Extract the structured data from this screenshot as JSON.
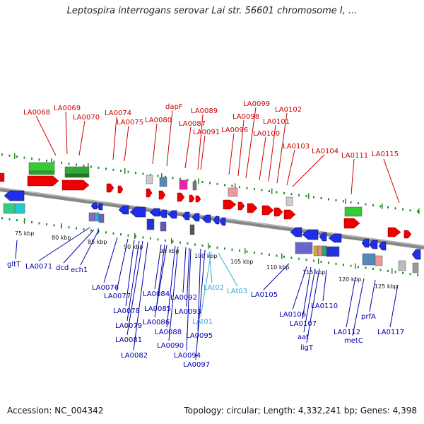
{
  "title": "Leptospira interrogans serovar Lai str. 56601 chromosome I, ...",
  "footer": {
    "accession": "Accession: NC_004342",
    "summary": "Topology: circular; Length: 4,332,241 bp; Genes: 4,398"
  },
  "colors": {
    "forward_label": "#cc0000",
    "reverse_label": "#0000aa",
    "rna_label": "#33aadd",
    "backbone": "#888888",
    "ruler_dots": "#228822"
  },
  "ruler_ticks": [
    "75 kbp",
    "80 kbp",
    "85 kbp",
    "90 kbp",
    "95 kbp",
    "100 kbp",
    "105 kbp",
    "110 kbp",
    "115 kbp",
    "120 kbp",
    "125 kbp"
  ],
  "forward_genes": [
    "LA0068",
    "LA0069",
    "LA0070",
    "LA0074",
    "LA0075",
    "LA0080",
    "dapF",
    "LA0087",
    "LA0089",
    "LA0091",
    "LA0096",
    "LA0098",
    "LA0099",
    "LA0100",
    "LA0101",
    "LA0102",
    "LA0103",
    "LA0104",
    "LA0111",
    "LA0115"
  ],
  "reverse_genes": [
    "gltT",
    "LA0071",
    "dcd",
    "ech1",
    "LA0076",
    "LA0077",
    "LA0078",
    "LA0079",
    "LA0081",
    "LA0082",
    "LA0084",
    "LA0085",
    "LA0086",
    "LA0088",
    "LA0090",
    "LA0092",
    "LA0093",
    "LA0094",
    "LA0095",
    "LA0097",
    "LA0105",
    "LA0106",
    "LA0107",
    "aat",
    "ligT",
    "LA0110",
    "LA0112",
    "metC",
    "prfA",
    "LA0117"
  ],
  "rna_genes": [
    "LAt02",
    "LAt03",
    "LAt01"
  ]
}
